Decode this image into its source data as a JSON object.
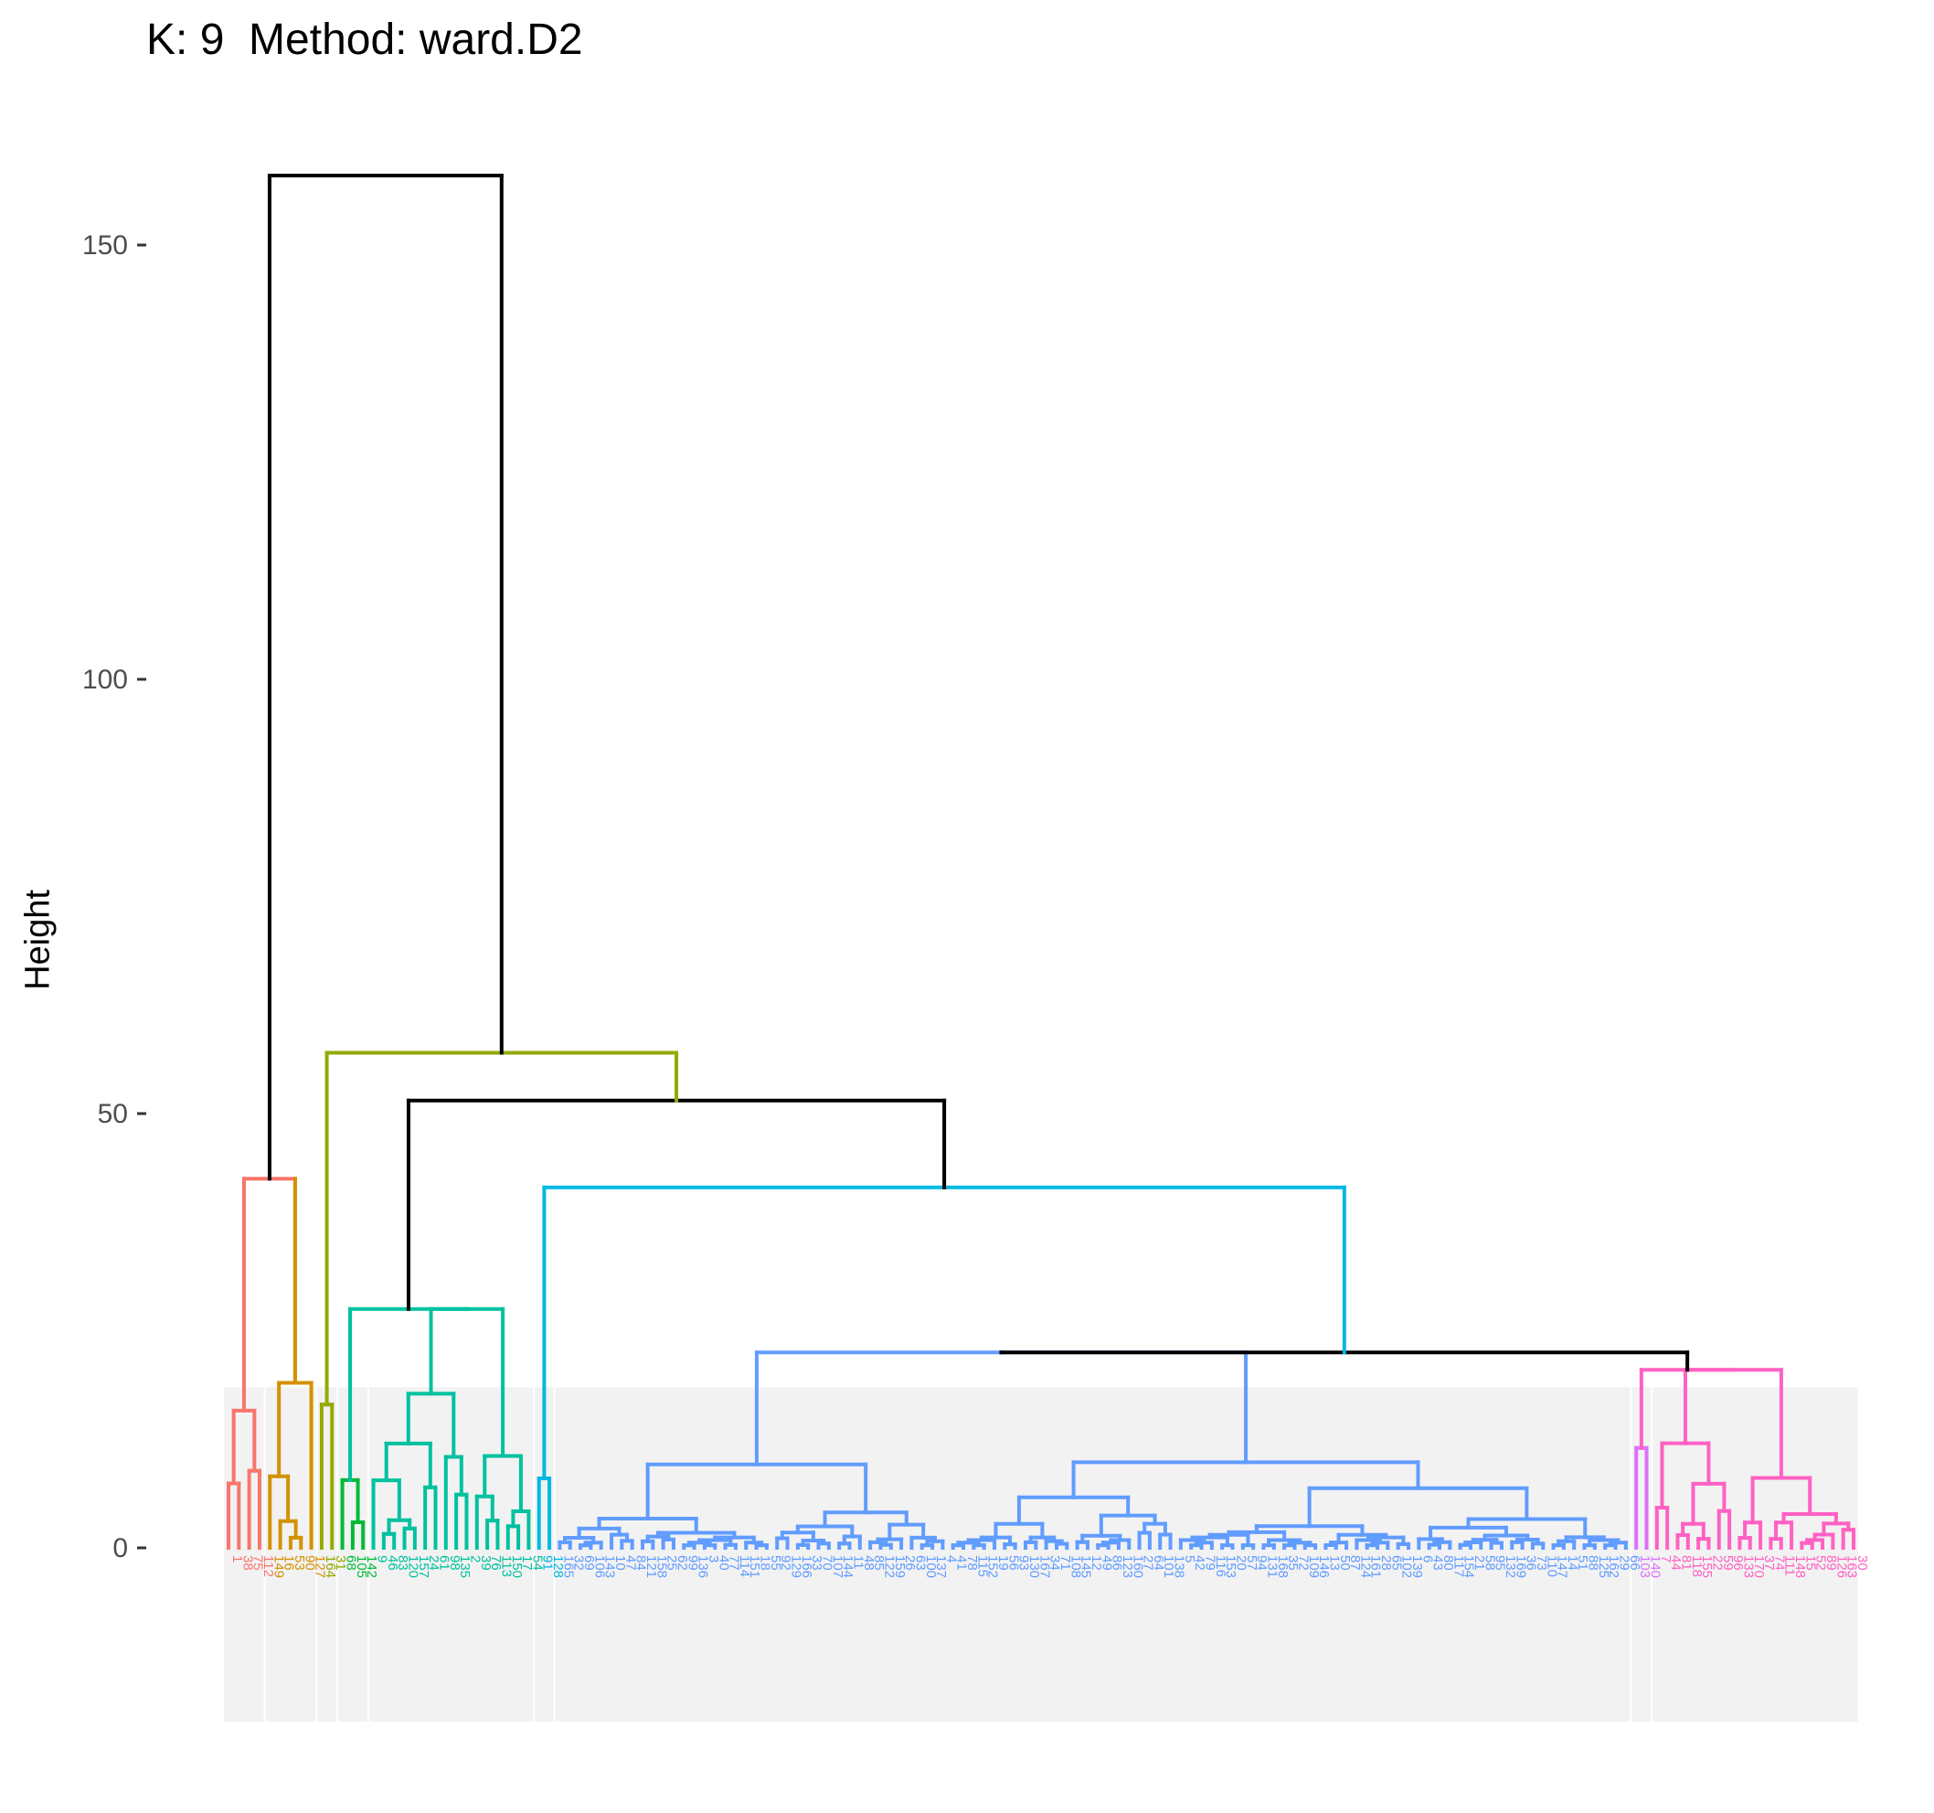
{
  "chart_data": {
    "type": "dendrogram",
    "title": "K: 9  Method: ward.D2",
    "ylabel": "Height",
    "xlabel": "",
    "yticks": [
      0,
      50,
      100,
      150
    ],
    "ylim": [
      -20,
      160
    ],
    "grid": false,
    "k": 9,
    "method": "ward.D2",
    "root_height": 158.0,
    "clusters": [
      {
        "color": "#F8766D",
        "leaves": 4,
        "height": 15.8
      },
      {
        "color": "#D39200",
        "leaves": 5,
        "height": 19.0
      },
      {
        "color": "#93AA00",
        "leaves": 2,
        "height": 16.5
      },
      {
        "color": "#00BA38",
        "leaves": 3,
        "height": 7.8
      },
      {
        "color": "#00C19F",
        "leaves": 16,
        "height": 27.5
      },
      {
        "color": "#00B9E3",
        "leaves": 2,
        "height": 8.0
      },
      {
        "color": "#619CFF",
        "leaves": 104,
        "height": 22.5
      },
      {
        "color": "#DB72FB",
        "leaves": 2,
        "height": 11.5
      },
      {
        "color": "#FF61C3",
        "leaves": 20,
        "height": 20.5
      }
    ],
    "merges": [
      {
        "name": "c1+c2",
        "height": 42.5
      },
      {
        "name": "c7+c89",
        "height": 22.5
      },
      {
        "name": "c6+c789",
        "height": 41.5
      },
      {
        "name": "c45+c6789",
        "height": 51.5
      },
      {
        "name": "c3+rest",
        "height": 57.0
      },
      {
        "name": "root",
        "height": 158.0
      }
    ]
  }
}
